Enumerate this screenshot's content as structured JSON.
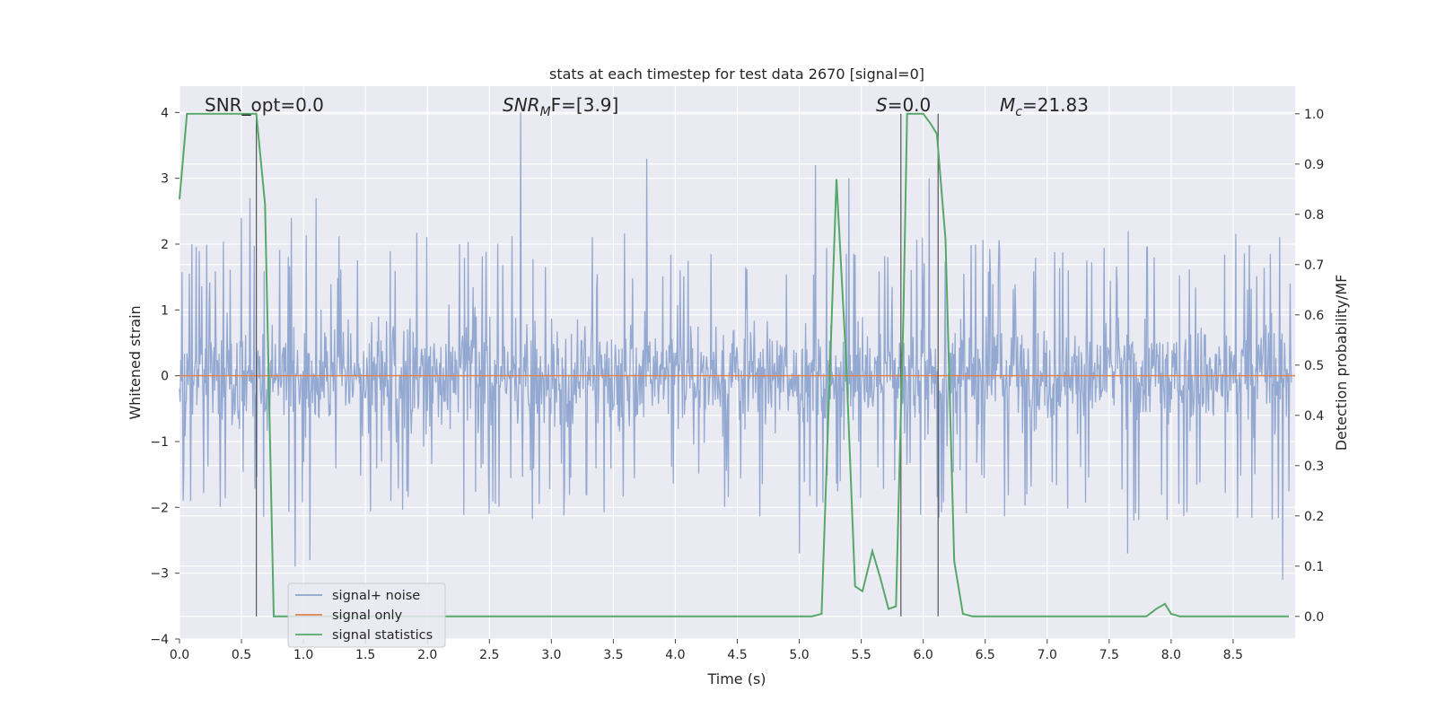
{
  "chart_data": {
    "type": "line",
    "title": "stats at each timestep for test data 2670 [signal=0]",
    "xlabel": "Time (s)",
    "ylabel": "Whitened strain",
    "ylabel_right": "Detection probability/MF",
    "xlim": [
      0.0,
      9.0
    ],
    "ylim": [
      -4.0,
      4.4
    ],
    "ylim_right": [
      -0.045,
      1.055
    ],
    "x_ticks": [
      "0.0",
      "0.5",
      "1.0",
      "1.5",
      "2.0",
      "2.5",
      "3.0",
      "3.5",
      "4.0",
      "4.5",
      "5.0",
      "5.5",
      "6.0",
      "6.5",
      "7.0",
      "7.5",
      "8.0",
      "8.5"
    ],
    "y_ticks": [
      "4",
      "3",
      "2",
      "1",
      "0",
      "−1",
      "−2",
      "−3",
      "−4"
    ],
    "y_right_ticks": [
      "1.0",
      "0.9",
      "0.8",
      "0.7",
      "0.6",
      "0.5",
      "0.4",
      "0.3",
      "0.2",
      "0.1",
      "0.0"
    ],
    "grid": true,
    "legend_position": "lower-left",
    "annotations": {
      "snr_opt": "SNR_opt=0.0",
      "snr_mf_prefix": "SNR",
      "snr_mf_sub": "M",
      "snr_mf_suffix": "F=[3.9]",
      "s_prefix": "S",
      "s_suffix": "=0.0",
      "mc_prefix": "M",
      "mc_sub": "c",
      "mc_suffix": "=21.83"
    },
    "series": [
      {
        "name": "signal+ noise",
        "color": "#8fa5cf",
        "description_hint": "dense noise trace, roughly symmetric around 0, amplitude mostly within ±1.7 with spikes",
        "spikes": [
          {
            "x": 0.1,
            "y": 2.0
          },
          {
            "x": 0.5,
            "y": 2.4
          },
          {
            "x": 0.57,
            "y": 2.7
          },
          {
            "x": 0.9,
            "y": 2.4
          },
          {
            "x": 1.1,
            "y": 2.7
          },
          {
            "x": 2.75,
            "y": 4.0
          },
          {
            "x": 3.77,
            "y": 3.3
          },
          {
            "x": 5.13,
            "y": 3.2
          },
          {
            "x": 5.4,
            "y": 3.0
          },
          {
            "x": 6.05,
            "y": 3.0
          },
          {
            "x": 0.93,
            "y": -2.9
          },
          {
            "x": 1.05,
            "y": -2.8
          },
          {
            "x": 5.0,
            "y": -2.7
          },
          {
            "x": 7.65,
            "y": -2.7
          },
          {
            "x": 8.9,
            "y": -3.1
          }
        ]
      },
      {
        "name": "signal only",
        "color": "#dd8452",
        "x": [
          0.0,
          9.0
        ],
        "y": [
          0.0,
          0.0
        ]
      },
      {
        "name": "signal statistics",
        "color": "#55a868",
        "axis": "right",
        "x": [
          0.0,
          0.06,
          0.12,
          0.2,
          0.3,
          0.4,
          0.5,
          0.55,
          0.62,
          0.69,
          0.76,
          0.85,
          1.0,
          1.5,
          2.0,
          3.0,
          4.0,
          5.0,
          5.1,
          5.18,
          5.3,
          5.38,
          5.45,
          5.51,
          5.59,
          5.65,
          5.72,
          5.78,
          5.84,
          5.87,
          5.93,
          6.0,
          6.06,
          6.11,
          6.18,
          6.25,
          6.32,
          6.4,
          6.5,
          7.0,
          7.5,
          7.8,
          7.88,
          7.95,
          8.0,
          8.07,
          8.2,
          8.5,
          8.95
        ],
        "y": [
          0.83,
          1.0,
          1.0,
          1.0,
          1.0,
          1.0,
          1.0,
          1.0,
          1.0,
          0.82,
          0.0,
          0.0,
          0.0,
          0.0,
          0.0,
          0.0,
          0.0,
          0.0,
          0.0,
          0.005,
          0.87,
          0.5,
          0.06,
          0.05,
          0.13,
          0.08,
          0.015,
          0.02,
          0.6,
          1.0,
          1.0,
          1.0,
          0.98,
          0.96,
          0.75,
          0.11,
          0.005,
          0.0,
          0.0,
          0.0,
          0.0,
          0.0,
          0.015,
          0.025,
          0.005,
          0.0,
          0.0,
          0.0,
          0.0
        ]
      }
    ],
    "vertical_lines_x": [
      0.62,
      5.82,
      6.12
    ]
  }
}
